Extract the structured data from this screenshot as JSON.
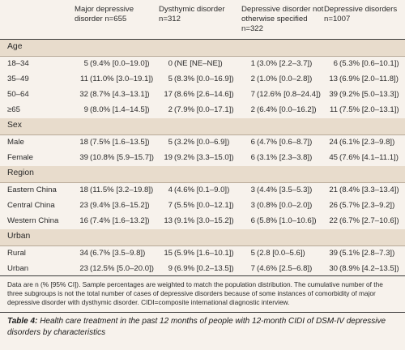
{
  "columns": [
    "",
    "Major depressive disorder n=655",
    "Dysthymic disorder n=312",
    "Depressive disorder not otherwise specified n=322",
    "Depressive disorders n=1007"
  ],
  "sections": [
    {
      "title": "Age",
      "rows": [
        {
          "label": "18–34",
          "cells": [
            [
              "5",
              "(9.4% [0.0–19.0])"
            ],
            [
              "0",
              "(NE [NE–NE])"
            ],
            [
              "1",
              "(3.0% [2.2–3.7])"
            ],
            [
              "6",
              "(5.3% [0.6–10.1])"
            ]
          ]
        },
        {
          "label": "35–49",
          "cells": [
            [
              "11",
              "(11.0% [3.0–19.1])"
            ],
            [
              "5",
              "(8.3% [0.0–16.9])"
            ],
            [
              "2",
              "(1.0% [0.0–2.8])"
            ],
            [
              "13",
              "(6.9% [2.0–11.8])"
            ]
          ]
        },
        {
          "label": "50–64",
          "cells": [
            [
              "32",
              "(8.7% [4.3–13.1])"
            ],
            [
              "17",
              "(8.6% [2.6–14.6])"
            ],
            [
              "7",
              "(12.6% [0.8–24.4])"
            ],
            [
              "39",
              "(9.2% [5.0–13.3])"
            ]
          ]
        },
        {
          "label": "≥65",
          "cells": [
            [
              "9",
              "(8.0% [1.4–14.5])"
            ],
            [
              "2",
              "(7.9% [0.0–17.1])"
            ],
            [
              "2",
              "(6.4% [0.0–16.2])"
            ],
            [
              "11",
              "(7.5% [2.0–13.1])"
            ]
          ]
        }
      ]
    },
    {
      "title": "Sex",
      "rows": [
        {
          "label": "Male",
          "cells": [
            [
              "18",
              "(7.5% [1.6–13.5])"
            ],
            [
              "5",
              "(3.2% [0.0–6.9])"
            ],
            [
              "6",
              "(4.7% [0.6–8.7])"
            ],
            [
              "24",
              "(6.1% [2.3–9.8])"
            ]
          ]
        },
        {
          "label": "Female",
          "cells": [
            [
              "39",
              "(10.8% [5.9–15.7])"
            ],
            [
              "19",
              "(9.2% [3.3–15.0])"
            ],
            [
              "6",
              "(3.1% [2.3–3.8])"
            ],
            [
              "45",
              "(7.6% [4.1–11.1])"
            ]
          ]
        }
      ]
    },
    {
      "title": "Region",
      "rows": [
        {
          "label": "Eastern China",
          "cells": [
            [
              "18",
              "(11.5% [3.2–19.8])"
            ],
            [
              "4",
              "(4.6% [0.1–9.0])"
            ],
            [
              "3",
              "(4.4% [3.5–5.3])"
            ],
            [
              "21",
              "(8.4% [3.3–13.4])"
            ]
          ]
        },
        {
          "label": "Central China",
          "cells": [
            [
              "23",
              "(9.4% [3.6–15.2])"
            ],
            [
              "7",
              "(5.5% [0.0–12.1])"
            ],
            [
              "3",
              "(0.8% [0.0–2.0])"
            ],
            [
              "26",
              "(5.7% [2.3–9.2])"
            ]
          ]
        },
        {
          "label": "Western China",
          "cells": [
            [
              "16",
              "(7.4% [1.6–13.2])"
            ],
            [
              "13",
              "(9.1% [3.0–15.2])"
            ],
            [
              "6",
              "(5.8% [1.0–10.6])"
            ],
            [
              "22",
              "(6.7% [2.7–10.6])"
            ]
          ]
        }
      ]
    },
    {
      "title": "Urban",
      "rows": [
        {
          "label": "Rural",
          "cells": [
            [
              "34",
              "(6.7% [3.5–9.8])"
            ],
            [
              "15",
              "(5.9% [1.6–10.1])"
            ],
            [
              "5",
              "(2.8 [0.0–5.6])"
            ],
            [
              "39",
              "(5.1% [2.8–7.3])"
            ]
          ]
        },
        {
          "label": "Urban",
          "cells": [
            [
              "23",
              "(12.5% [5.0–20.0])"
            ],
            [
              "9",
              "(6.9% [0.2–13.5])"
            ],
            [
              "7",
              "(4.6% [2.5–6.8])"
            ],
            [
              "30",
              "(8.9% [4.2–13.5])"
            ]
          ]
        }
      ]
    }
  ],
  "footnote": "Data are n (% [95% CI]). Sample percentages are weighted to match the population distribution. The cumulative number of the three subgroups is not the total number of cases of depressive disorders because of some instances of comorbidity of major depressive disorder with dysthymic disorder. CIDI=composite international diagnostic interview.",
  "caption": {
    "label": "Table 4:",
    "text": " Health care treatment in the past 12 months of people with 12-month CIDI of DSM-IV depressive disorders by characteristics"
  }
}
